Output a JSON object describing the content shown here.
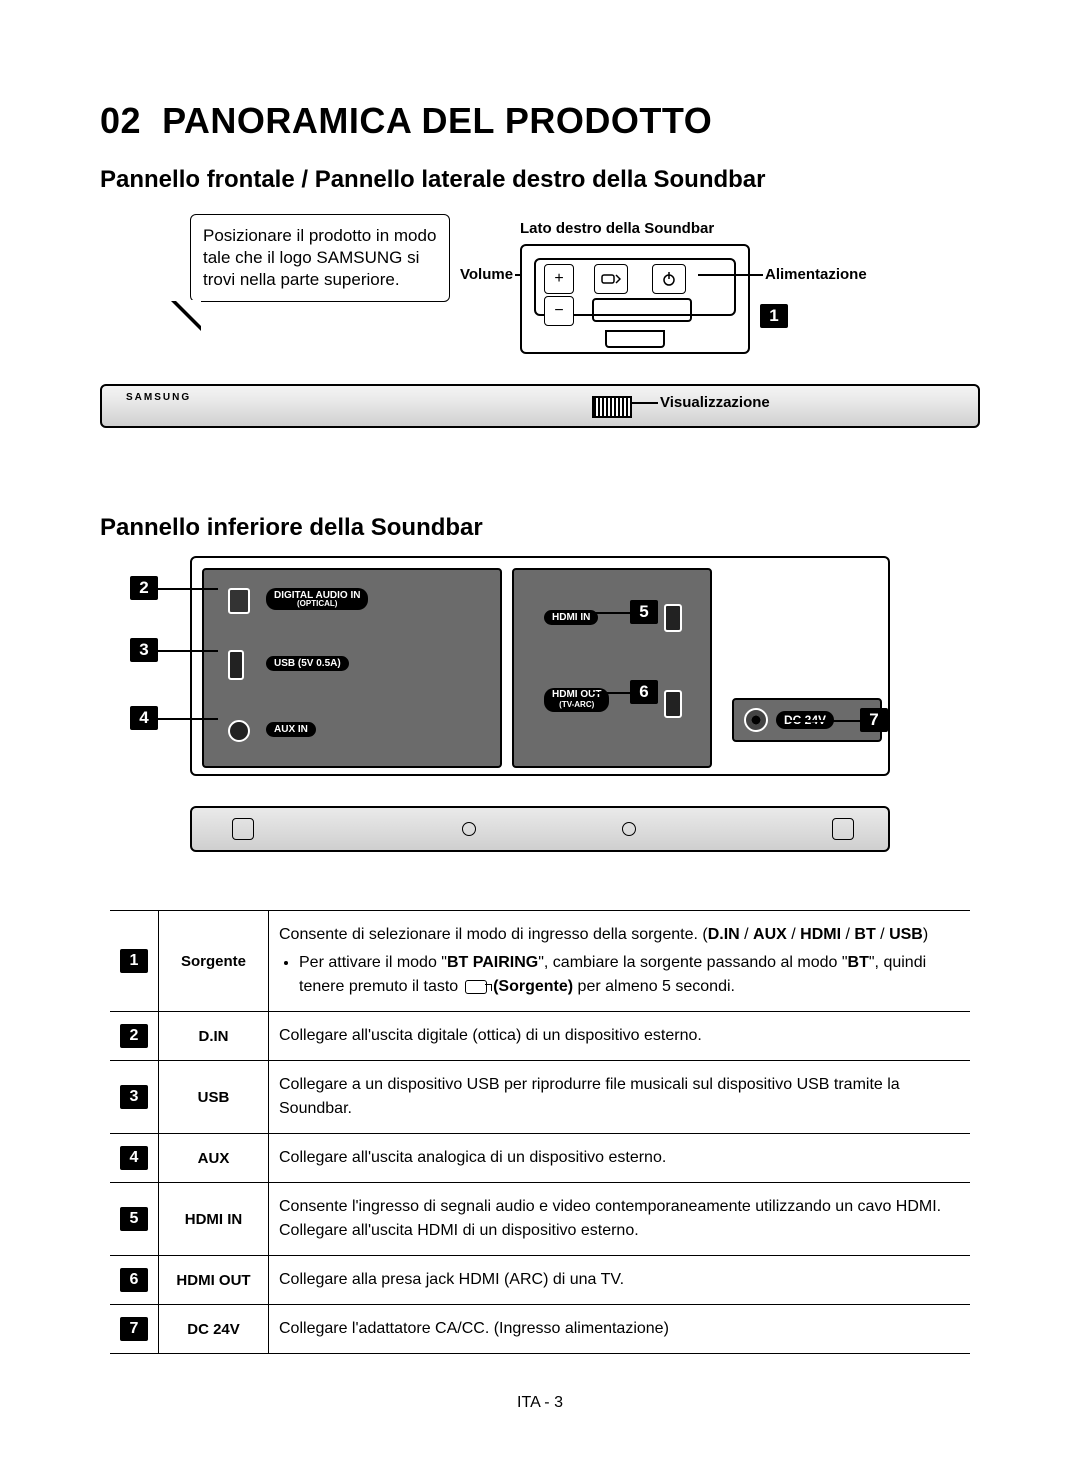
{
  "section_number": "02",
  "section_title": "PANORAMICA DEL PRODOTTO",
  "subtitle1": "Pannello frontale / Pannello laterale destro della Soundbar",
  "subtitle2": "Pannello inferiore della Soundbar",
  "speech_bubble": "Posizionare il prodotto in modo tale che il logo SAMSUNG si trovi nella parte superiore.",
  "right_side_label": "Lato destro della Soundbar",
  "labels": {
    "volume": "Volume",
    "alimentazione": "Alimentazione",
    "visualizzazione": "Visualizzazione"
  },
  "bar_logo": "SAMSUNG",
  "bottom_panel_port_labels": {
    "optical": "DIGITAL AUDIO IN",
    "optical_sub": "(OPTICAL)",
    "usb": "USB (5V 0.5A)",
    "aux": "AUX IN",
    "hdmi_in": "HDMI IN",
    "hdmi_out": "HDMI OUT",
    "hdmi_out_sub": "(TV-ARC)",
    "dc": "DC 24V"
  },
  "table": {
    "rows": [
      {
        "num": "1",
        "name": "Sorgente",
        "desc_html": "Consente di selezionare il modo di ingresso della sorgente. (<span class='b'>D.IN</span> / <span class='b'>AUX</span> / <span class='b'>HDMI</span> / <span class='b'>BT</span> / <span class='b'>USB</span>)<ul><li>Per attivare il modo \"<span class='b'>BT PAIRING</span>\", cambiare la sorgente passando al modo \"<span class='b'>BT</span>\", quindi tenere premuto il tasto <span class='src-icon' data-name='source-icon' data-interactable='false'></span> <span class='b'>(Sorgente)</span> per almeno 5 secondi.</li></ul>"
      },
      {
        "num": "2",
        "name": "D.IN",
        "desc_html": "Collegare all'uscita digitale (ottica) di un dispositivo esterno."
      },
      {
        "num": "3",
        "name": "USB",
        "desc_html": "Collegare a un dispositivo USB per riprodurre file musicali sul dispositivo USB tramite la Soundbar."
      },
      {
        "num": "4",
        "name": "AUX",
        "desc_html": "Collegare all'uscita analogica di un dispositivo esterno."
      },
      {
        "num": "5",
        "name": "HDMI IN",
        "desc_html": "Consente l'ingresso di segnali audio e video contemporaneamente utilizzando un cavo HDMI. Collegare all'uscita HDMI di un dispositivo esterno."
      },
      {
        "num": "6",
        "name": "HDMI OUT",
        "desc_html": "Collegare alla presa jack HDMI (ARC) di una TV."
      },
      {
        "num": "7",
        "name": "DC 24V",
        "desc_html": "Collegare l'adattatore CA/CC. (Ingresso alimentazione)"
      }
    ]
  },
  "footer": "ITA - 3",
  "colors": {
    "text": "#000000",
    "panel_gray": "#6b6b6b",
    "number_box_bg": "#000000",
    "number_box_fg": "#ffffff"
  }
}
